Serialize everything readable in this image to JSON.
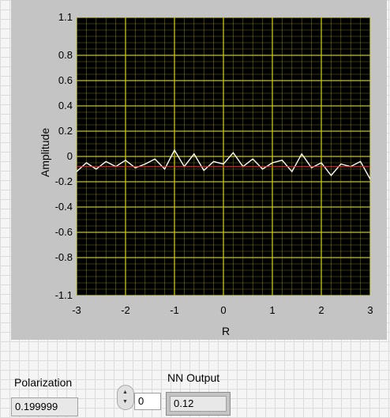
{
  "graph": {
    "ylabel": "Amplitude",
    "xlabel": "R",
    "yticks": [
      {
        "label": "1.1",
        "value": 1.1
      },
      {
        "label": "0.8",
        "value": 0.8
      },
      {
        "label": "0.6",
        "value": 0.6
      },
      {
        "label": "0.4",
        "value": 0.4
      },
      {
        "label": "0.2",
        "value": 0.2
      },
      {
        "label": "0",
        "value": 0
      },
      {
        "label": "-0.2",
        "value": -0.2
      },
      {
        "label": "-0.4",
        "value": -0.4
      },
      {
        "label": "-0.6",
        "value": -0.6
      },
      {
        "label": "-0.8",
        "value": -0.8
      },
      {
        "label": "-1.1",
        "value": -1.1
      }
    ],
    "xticks": [
      {
        "label": "-3",
        "value": -3
      },
      {
        "label": "-2",
        "value": -2
      },
      {
        "label": "-1",
        "value": -1
      },
      {
        "label": "0",
        "value": 0
      },
      {
        "label": "1",
        "value": 1
      },
      {
        "label": "2",
        "value": 2
      },
      {
        "label": "3",
        "value": 3
      }
    ],
    "colors": {
      "plot_bg": "#000000",
      "grid": "#c8c800",
      "trace_noise": "#ffffff",
      "trace_ref": "#e03030",
      "panel": "#c4c4c4"
    }
  },
  "chart_data": {
    "type": "line",
    "title": "",
    "xlabel": "R",
    "ylabel": "Amplitude",
    "xlim": [
      -3,
      3
    ],
    "ylim": [
      -1.1,
      1.1
    ],
    "grid": true,
    "series": [
      {
        "color": "#ffffff",
        "x": [
          -3.0,
          -2.8,
          -2.6,
          -2.4,
          -2.2,
          -2.0,
          -1.8,
          -1.6,
          -1.4,
          -1.2,
          -1.0,
          -0.8,
          -0.6,
          -0.4,
          -0.2,
          0.0,
          0.2,
          0.4,
          0.6,
          0.8,
          1.0,
          1.2,
          1.4,
          1.6,
          1.8,
          2.0,
          2.2,
          2.4,
          2.6,
          2.8,
          3.0
        ],
        "y": [
          -0.12,
          -0.05,
          -0.1,
          -0.04,
          -0.08,
          -0.03,
          -0.09,
          -0.06,
          -0.02,
          -0.1,
          0.05,
          -0.08,
          0.02,
          -0.11,
          -0.04,
          -0.06,
          0.03,
          -0.08,
          -0.02,
          -0.1,
          -0.05,
          -0.03,
          -0.12,
          0.02,
          -0.09,
          -0.05,
          -0.15,
          -0.06,
          -0.08,
          -0.04,
          -0.18
        ]
      },
      {
        "color": "#e03030",
        "x": [
          -3.0,
          3.0
        ],
        "y": [
          -0.08,
          -0.08
        ]
      }
    ]
  },
  "controls": {
    "polarization_label": "Polarization",
    "polarization_value": "0.199999",
    "spinner_value": "0",
    "nn_output_label": "NN Output",
    "nn_output_value": "0.12"
  }
}
